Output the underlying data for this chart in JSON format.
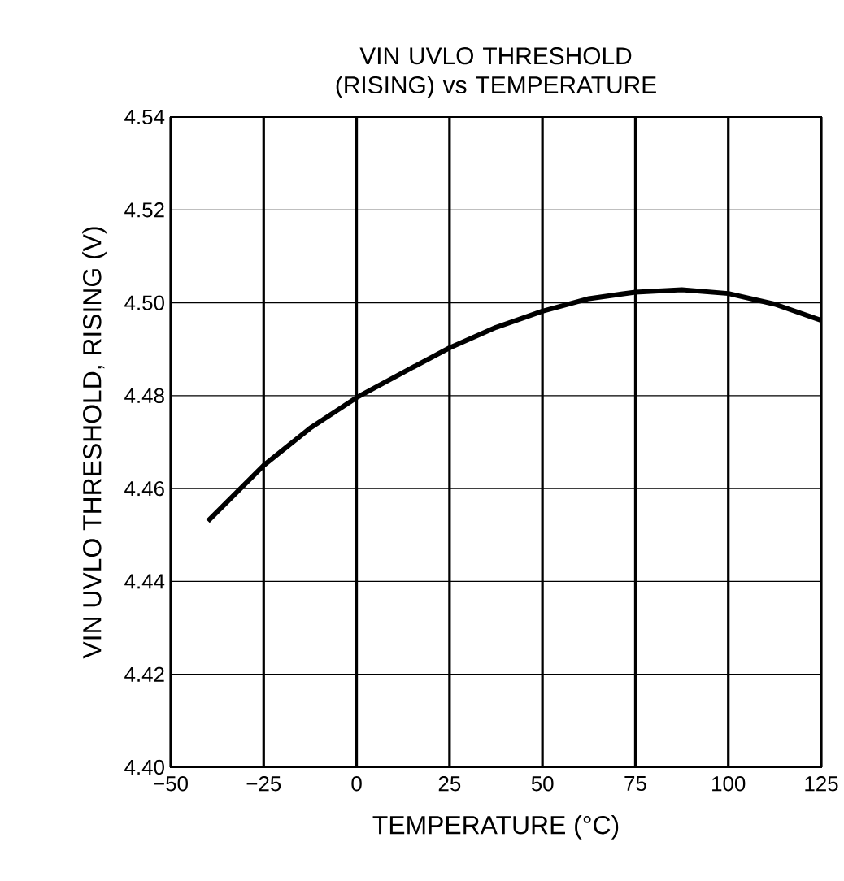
{
  "chart_data": {
    "type": "line",
    "title": "VIN UVLO THRESHOLD (RISING) vs TEMPERATURE",
    "xlabel": "TEMPERATURE (°C)",
    "ylabel": "VIN UVLO THRESHOLD, RISING (V)",
    "x": [
      -40,
      -25,
      -12.5,
      0,
      12.5,
      25,
      37.5,
      50,
      62.5,
      75,
      87.5,
      100,
      112.5,
      125
    ],
    "series": [
      {
        "color": "#000000",
        "values": [
          4.453,
          4.465,
          4.473,
          4.4796,
          4.485,
          4.4903,
          4.4947,
          4.4982,
          4.5009,
          4.5023,
          4.5028,
          4.502,
          4.4997,
          4.4962
        ]
      }
    ],
    "xlim": [
      -50,
      125
    ],
    "ylim": [
      4.4,
      4.54
    ],
    "xticks": [
      {
        "value": -50,
        "label": "−50"
      },
      {
        "value": -25,
        "label": "−25"
      },
      0,
      25,
      50,
      75,
      100,
      125
    ],
    "yticks": [
      {
        "value": 4.4,
        "label": "4.40"
      },
      4.42,
      4.44,
      4.46,
      4.48,
      {
        "value": 4.5,
        "label": "4.50"
      },
      4.52,
      4.54
    ],
    "grid": true,
    "line_style": "solid",
    "marker": "none"
  }
}
